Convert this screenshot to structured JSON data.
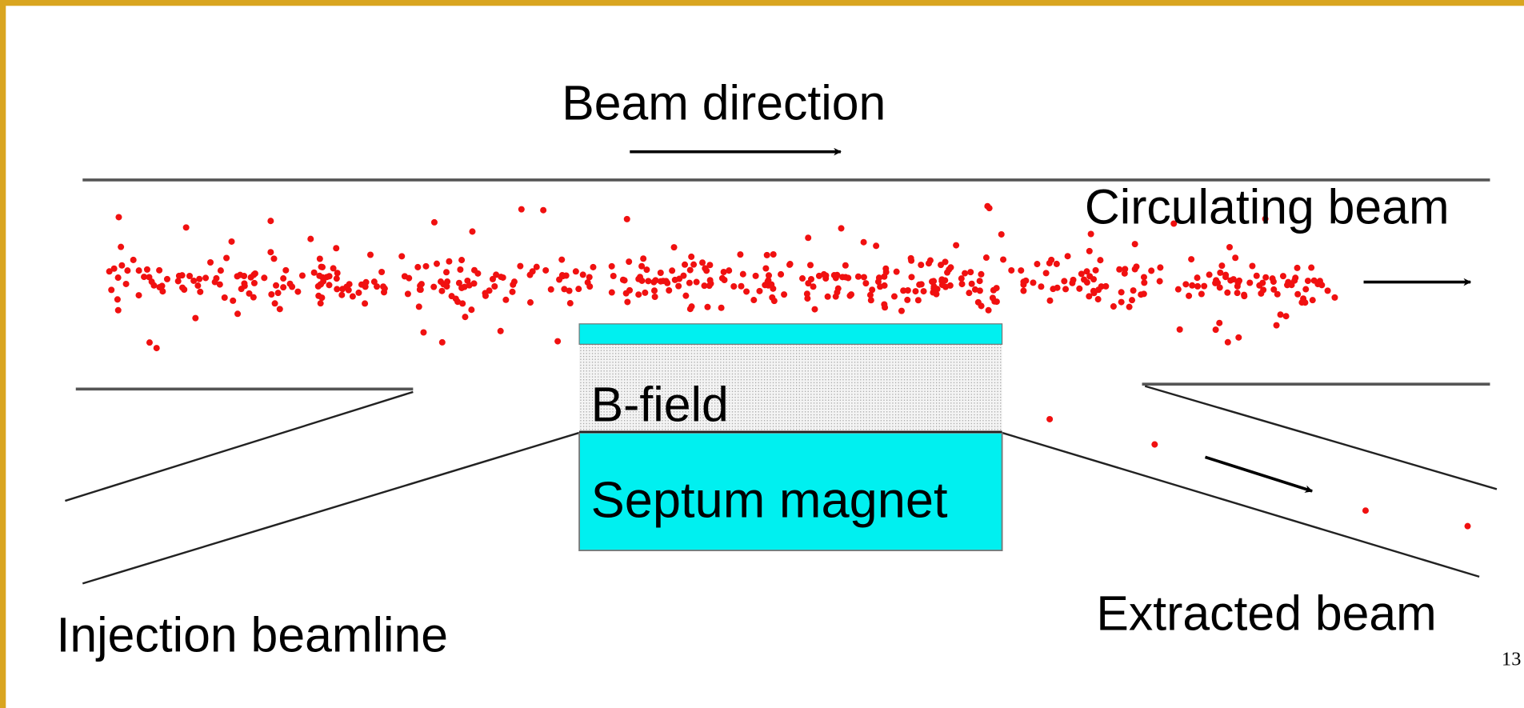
{
  "labels": {
    "beam_direction": "Beam direction",
    "circulating_beam": "Circulating beam",
    "b_field": "B-field",
    "septum_magnet": "Septum magnet",
    "injection_beamline": "Injection beamline",
    "extracted_beam": "Extracted beam"
  },
  "page_number": "13"
}
